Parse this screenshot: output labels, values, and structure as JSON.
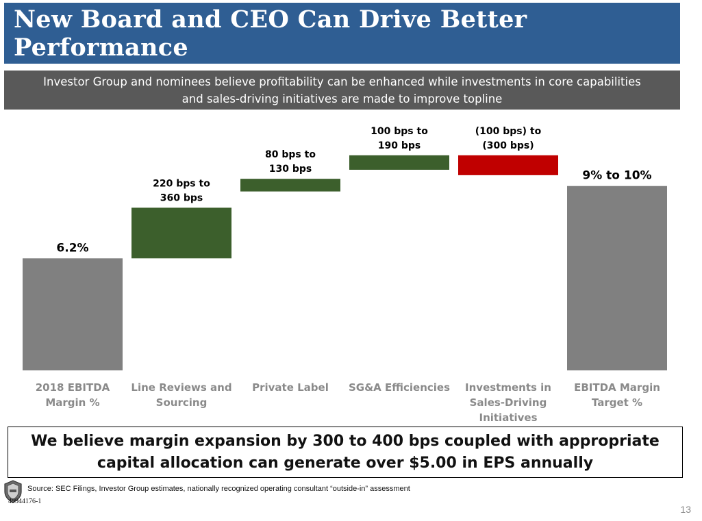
{
  "slide": {
    "title": "New Board and CEO Can Drive Better Performance",
    "subtitle": "Investor Group and nominees believe profitability can be enhanced while investments in core capabilities\nand sales-driving initiatives are made to improve topline",
    "callout": "We believe margin expansion by 300 to 400 bps coupled with appropriate\ncapital allocation can generate over $5.00 in EPS annually",
    "source": "Source: SEC Filings, Investor Group estimates, nationally recognized operating consultant “outside-in” assessment",
    "doc_id": "49944176-1",
    "page_number": "13",
    "logo_icon": "shield-logo-icon"
  },
  "chart_data": {
    "type": "bar",
    "subtype": "waterfall",
    "axes_visible": false,
    "gridlines": false,
    "categories": [
      "2018 EBITDA Margin %",
      "Line Reviews and Sourcing",
      "Private Label",
      "SG&A Efficiencies",
      "Investments in Sales-Driving Initiatives",
      "EBITDA Margin Target %"
    ],
    "category_labels": [
      [
        "2018 EBITDA",
        "Margin %"
      ],
      [
        "Line Reviews and",
        "Sourcing"
      ],
      [
        "Private Label"
      ],
      [
        "SG&A Efficiencies"
      ],
      [
        "Investments in",
        "Sales-Driving",
        "Initiatives"
      ],
      [
        "EBITDA Margin",
        "Target %"
      ]
    ],
    "data_labels": [
      [
        "6.2%"
      ],
      [
        "220 bps to",
        "360 bps"
      ],
      [
        "80 bps to",
        "130 bps"
      ],
      [
        "100 bps to",
        "190 bps"
      ],
      [
        "(100 bps) to",
        "(300 bps)"
      ],
      [
        "9% to 10%"
      ]
    ],
    "bars": [
      {
        "kind": "total",
        "low": 0,
        "high": 6.2,
        "color": "#808080"
      },
      {
        "kind": "increase",
        "low": 6.2,
        "high": 9.0,
        "color": "#3c5f2c"
      },
      {
        "kind": "increase",
        "low": 9.9,
        "high": 10.6,
        "color": "#3c5f2c"
      },
      {
        "kind": "increase",
        "low": 11.1,
        "high": 11.9,
        "color": "#3c5f2c"
      },
      {
        "kind": "decrease",
        "low": 10.8,
        "high": 11.9,
        "color": "#c00000"
      },
      {
        "kind": "total",
        "low": 0,
        "high": 10.2,
        "color": "#808080"
      }
    ],
    "ylim": [
      0,
      12.5
    ]
  }
}
